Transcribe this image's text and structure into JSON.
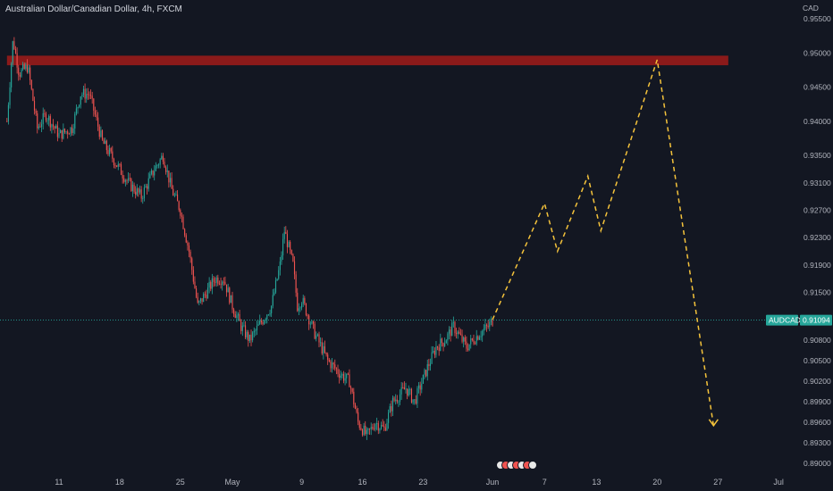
{
  "header": {
    "title": "Australian Dollar/Canadian Dollar, 4h, FXCM"
  },
  "colors": {
    "background": "#131722",
    "up_candle": "#26a69a",
    "down_candle": "#ef5350",
    "resistance_zone": "#8b1a1a",
    "projection_line": "#f5c33b",
    "price_badge": "#26a69a",
    "last_price_line": "#26a69a"
  },
  "chart_data": {
    "type": "candlestick",
    "symbol_label": "AUDCAD",
    "last_price": 0.91094,
    "y_unit_label": "CAD",
    "ylim": [
      0.8882,
      0.9587
    ],
    "y_ticks": [
      "0.95500",
      "0.95000",
      "0.94500",
      "0.94000",
      "0.93500",
      "0.93100",
      "0.92700",
      "0.92300",
      "0.91900",
      "0.91500",
      "0.90800",
      "0.90500",
      "0.90200",
      "0.89900",
      "0.89600",
      "0.89300",
      "0.89000"
    ],
    "x_ticks": [
      "11",
      "18",
      "25",
      "May",
      "9",
      "16",
      "23",
      "Jun",
      "7",
      "13",
      "20",
      "27",
      "Jul"
    ],
    "x_ticks_day_index": [
      0,
      7,
      14,
      20,
      28,
      35,
      42,
      50,
      56,
      62,
      69,
      76,
      83
    ],
    "candles_per_day": 6,
    "first_candle_day_index": -6,
    "price_path": [
      [
        -6,
        0.94
      ],
      [
        -5.3,
        0.952
      ],
      [
        -4.6,
        0.947
      ],
      [
        -3.6,
        0.948
      ],
      [
        -2.5,
        0.939
      ],
      [
        -1.5,
        0.941
      ],
      [
        0,
        0.938
      ],
      [
        1.5,
        0.939
      ],
      [
        2.5,
        0.944
      ],
      [
        3.5,
        0.944
      ],
      [
        5,
        0.937
      ],
      [
        7,
        0.933
      ],
      [
        8,
        0.931
      ],
      [
        9.5,
        0.929
      ],
      [
        11,
        0.933
      ],
      [
        12,
        0.935
      ],
      [
        13,
        0.93
      ],
      [
        14,
        0.927
      ],
      [
        15,
        0.921
      ],
      [
        16,
        0.913
      ],
      [
        17,
        0.915
      ],
      [
        18,
        0.917
      ],
      [
        19,
        0.917
      ],
      [
        20,
        0.913
      ],
      [
        21,
        0.91
      ],
      [
        22,
        0.908
      ],
      [
        23,
        0.91
      ],
      [
        24.5,
        0.913
      ],
      [
        25.5,
        0.919
      ],
      [
        26,
        0.924
      ],
      [
        27,
        0.919
      ],
      [
        27.5,
        0.913
      ],
      [
        28,
        0.914
      ],
      [
        29.5,
        0.909
      ],
      [
        31,
        0.905
      ],
      [
        32.5,
        0.903
      ],
      [
        33.5,
        0.902
      ],
      [
        34.5,
        0.896
      ],
      [
        35.5,
        0.894
      ],
      [
        36.5,
        0.896
      ],
      [
        37.5,
        0.895
      ],
      [
        38.5,
        0.899
      ],
      [
        40,
        0.901
      ],
      [
        41,
        0.899
      ],
      [
        42.5,
        0.904
      ],
      [
        43.5,
        0.907
      ],
      [
        44.5,
        0.908
      ],
      [
        45.5,
        0.91
      ],
      [
        47,
        0.907
      ],
      [
        48.5,
        0.909
      ],
      [
        49.5,
        0.91
      ],
      [
        50,
        0.9109
      ]
    ],
    "resistance_zone": {
      "start_day_index": -6,
      "end_day_index": 77.2,
      "top": 0.9496,
      "bottom": 0.9482
    },
    "projection": {
      "points": [
        [
          50,
          0.911
        ],
        [
          56,
          0.928
        ],
        [
          57.5,
          0.921
        ],
        [
          61,
          0.932
        ],
        [
          62.5,
          0.924
        ],
        [
          69,
          0.949
        ],
        [
          75.5,
          0.8955
        ]
      ],
      "arrow": "down"
    }
  }
}
